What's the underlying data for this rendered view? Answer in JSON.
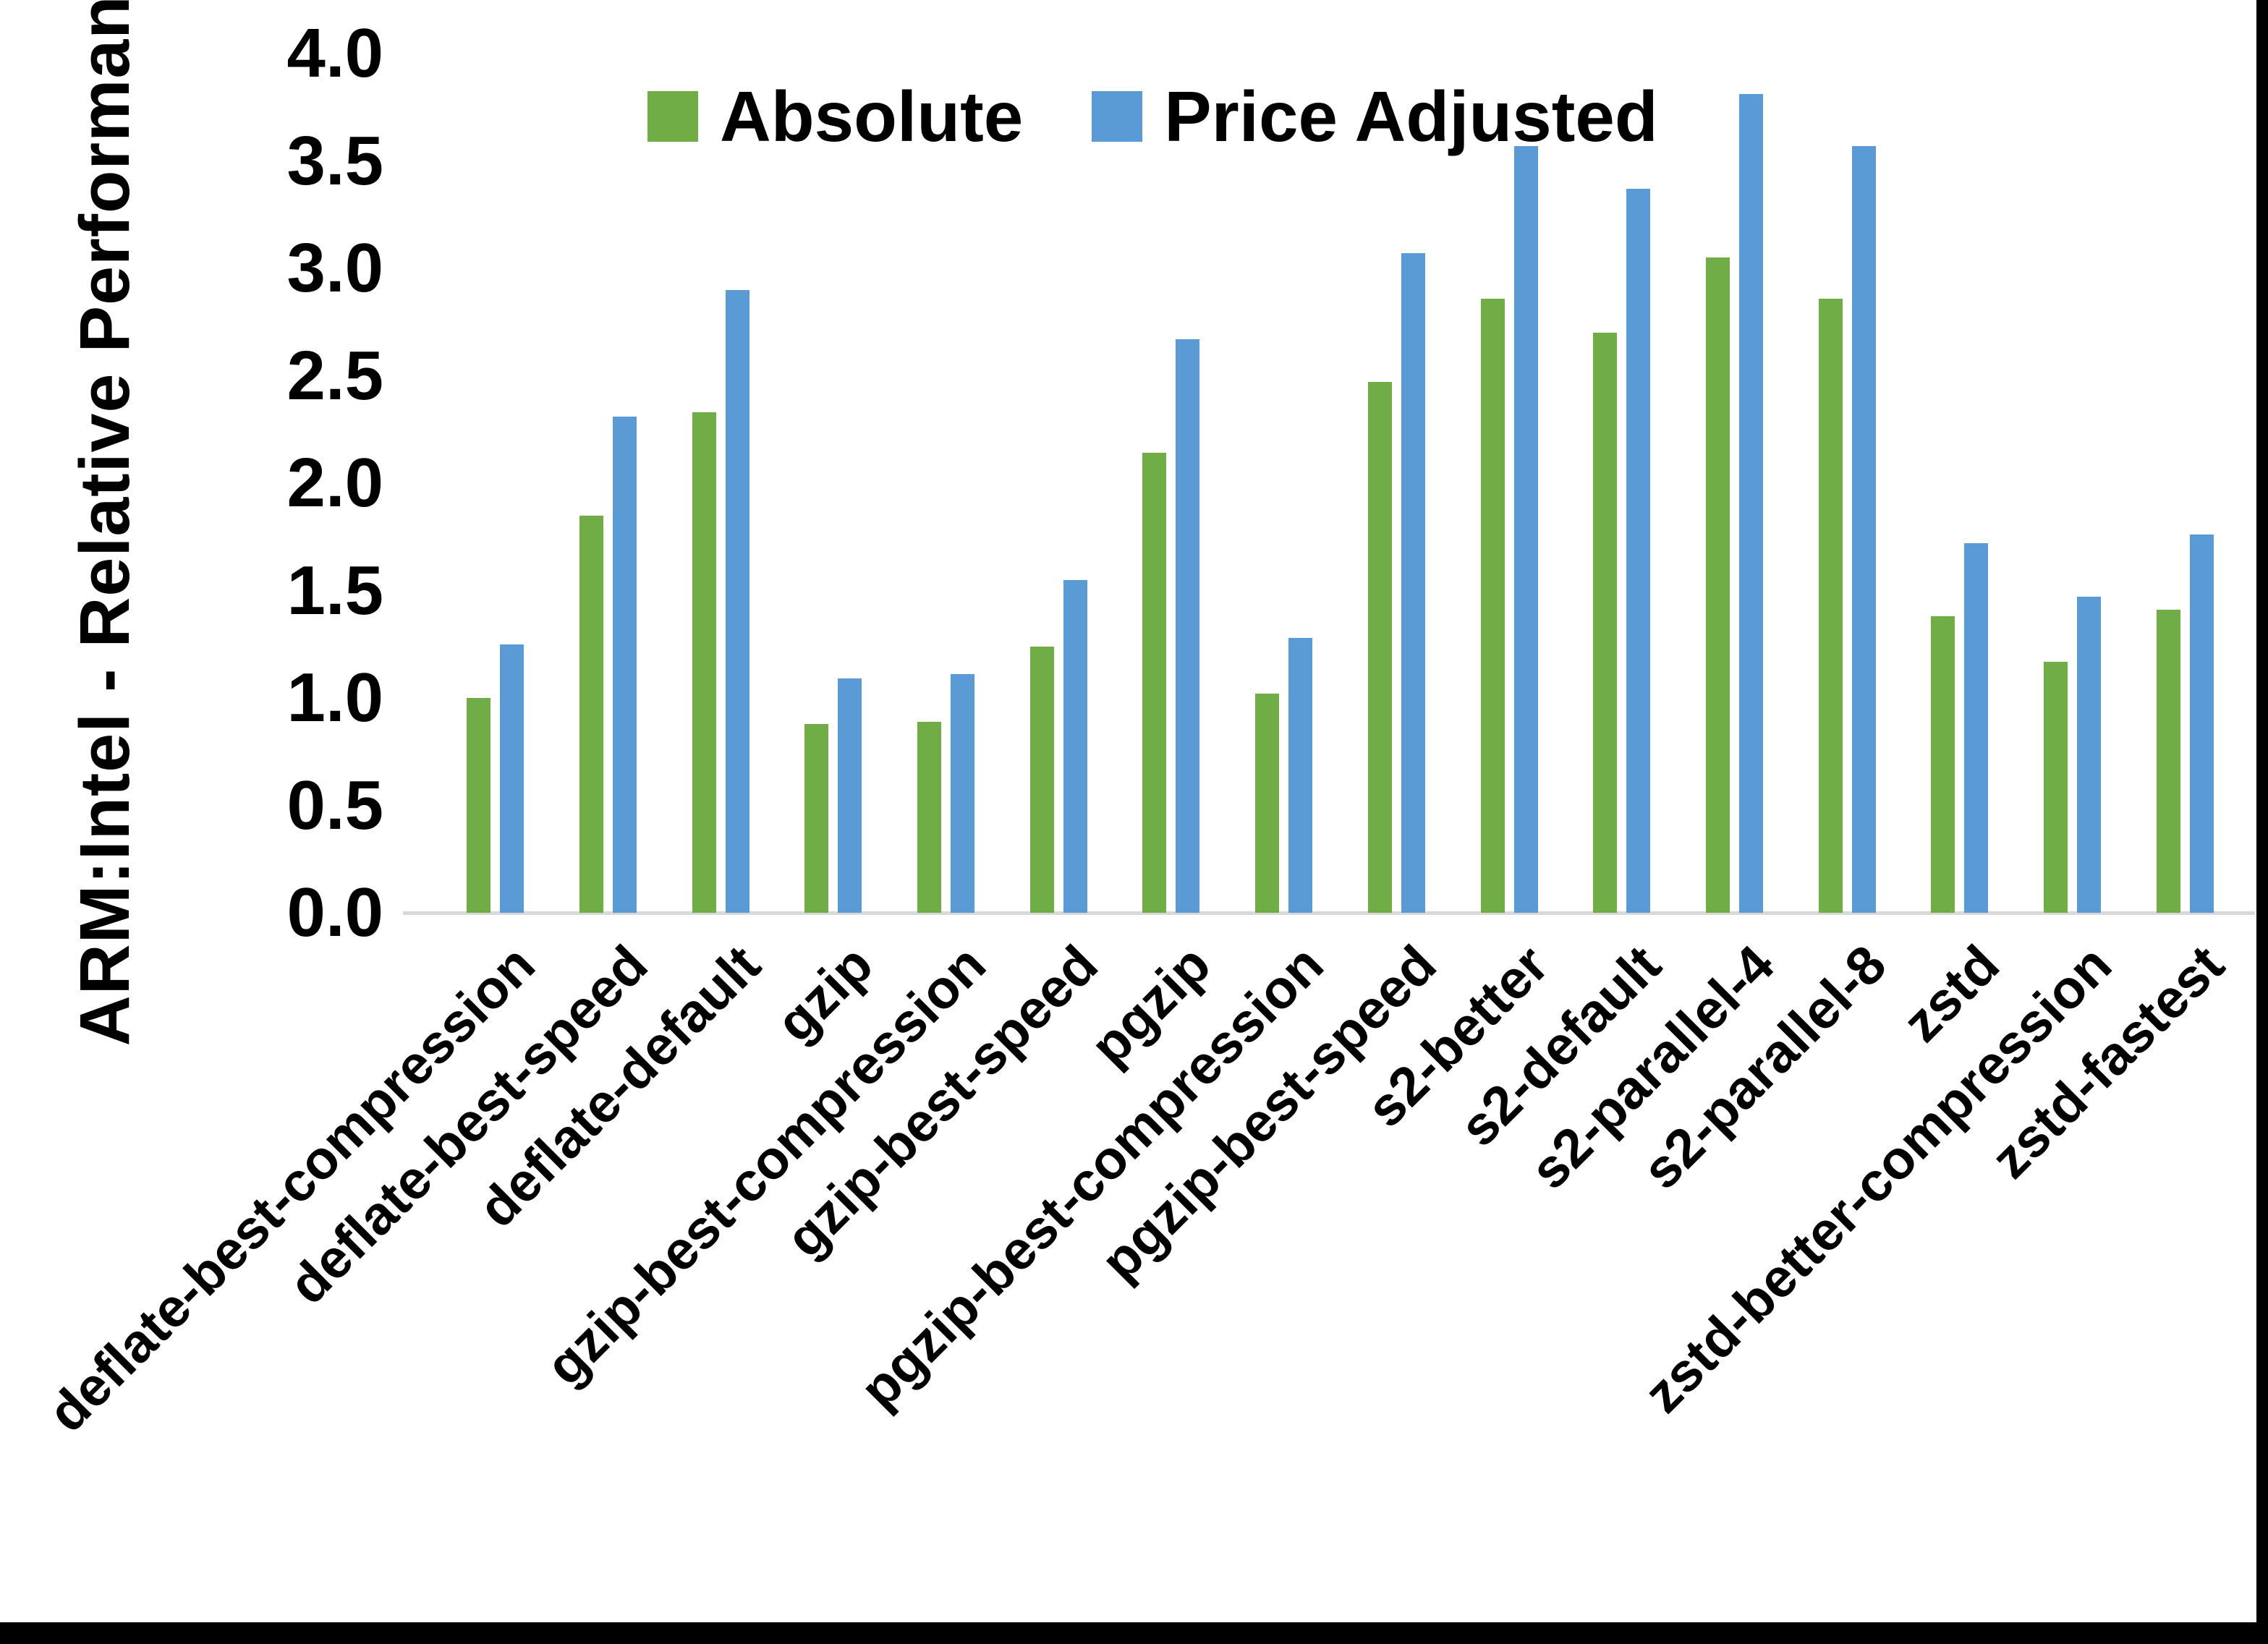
{
  "chart_data": {
    "type": "bar",
    "title": "",
    "xlabel": "",
    "ylabel": "ARM:Intel - Relative Performance",
    "ylim": [
      0.0,
      4.0
    ],
    "ytick_step": 0.5,
    "yticks": [
      "4.0",
      "3.5",
      "3.0",
      "2.5",
      "2.0",
      "1.5",
      "1.0",
      "0.5",
      "0.0"
    ],
    "grid": false,
    "legend_position": "top-center",
    "axis_line_color": "#D9D9D9",
    "text_color": "#000000",
    "background_color": "#FFFFFF",
    "border_color": "#000000",
    "categories": [
      "deflate-best-compression",
      "deflate-best-speed",
      "deflate-default",
      "gzip",
      "gzip-best-compression",
      "gzip-best-speed",
      "pgzip",
      "pgzip-best-compression",
      "pgzip-best-speed",
      "s2-better",
      "s2-default",
      "s2-parallel-4",
      "s2-parallel-8",
      "zstd",
      "zstd-better-compression",
      "zstd-fastest"
    ],
    "series": [
      {
        "name": "Absolute",
        "color": "#70AD47",
        "values": [
          1.0,
          1.85,
          2.33,
          0.88,
          0.89,
          1.24,
          2.14,
          1.02,
          2.47,
          2.86,
          2.7,
          3.05,
          2.86,
          1.38,
          1.17,
          1.41
        ]
      },
      {
        "name": "Price Adjusted",
        "color": "#5B9BD5",
        "values": [
          1.25,
          2.31,
          2.9,
          1.09,
          1.11,
          1.55,
          2.67,
          1.28,
          3.07,
          3.57,
          3.37,
          3.81,
          3.57,
          1.72,
          1.47,
          1.76
        ]
      }
    ]
  }
}
